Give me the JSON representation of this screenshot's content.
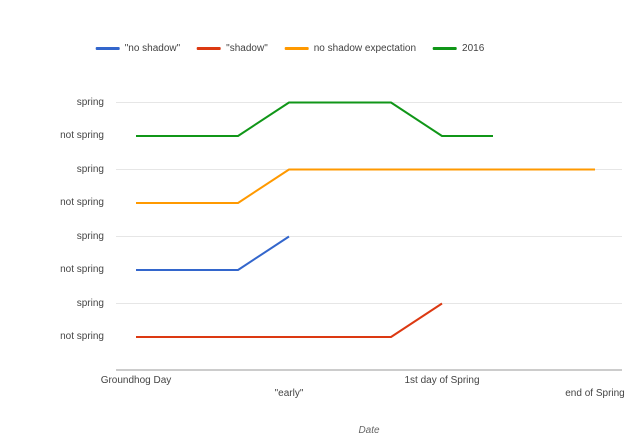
{
  "chart_data": {
    "type": "line",
    "title": "",
    "xlabel": "Date",
    "ylabel": "",
    "grid": "horizontal-only",
    "grid_color": "#e6e6e6",
    "axis_line_color": "#999999",
    "legend_position": "top",
    "x_categories": [
      "Groundhog Day",
      "",
      "",
      "\"early\"",
      "",
      "",
      "1st day of Spring",
      "",
      "",
      "end of Spring"
    ],
    "x_tick_labels": [
      {
        "text": "Groundhog Day",
        "category_index": 0
      },
      {
        "text": "\"early\"",
        "category_index": 3
      },
      {
        "text": "1st day of Spring",
        "category_index": 6
      },
      {
        "text": "end of Spring",
        "category_index": 9
      }
    ],
    "y_tick_labels": [
      "spring",
      "not spring",
      "spring",
      "not spring",
      "spring",
      "not spring",
      "spring",
      "not spring"
    ],
    "value_meaning": {
      "1": "spring",
      "0": "not spring"
    },
    "band_order_top_to_bottom": [
      "2016",
      "no shadow expectation",
      "\"no shadow\"",
      "\"shadow\""
    ],
    "series": [
      {
        "name": "\"no shadow\"",
        "color": "#3366CC",
        "band_row_from_top": 2,
        "values": [
          0,
          0,
          0,
          1,
          null,
          null,
          null,
          null,
          null,
          null
        ]
      },
      {
        "name": "\"shadow\"",
        "color": "#DC3912",
        "band_row_from_top": 3,
        "values": [
          0,
          0,
          0,
          0,
          0,
          0,
          1,
          null,
          null,
          null
        ]
      },
      {
        "name": "no shadow expectation",
        "color": "#FF9900",
        "band_row_from_top": 1,
        "values": [
          0,
          0,
          0,
          1,
          1,
          1,
          1,
          1,
          1,
          1
        ]
      },
      {
        "name": "2016",
        "color": "#109618",
        "band_row_from_top": 0,
        "values": [
          0,
          0,
          0,
          1,
          1,
          1,
          0,
          0,
          null,
          null
        ]
      }
    ]
  }
}
